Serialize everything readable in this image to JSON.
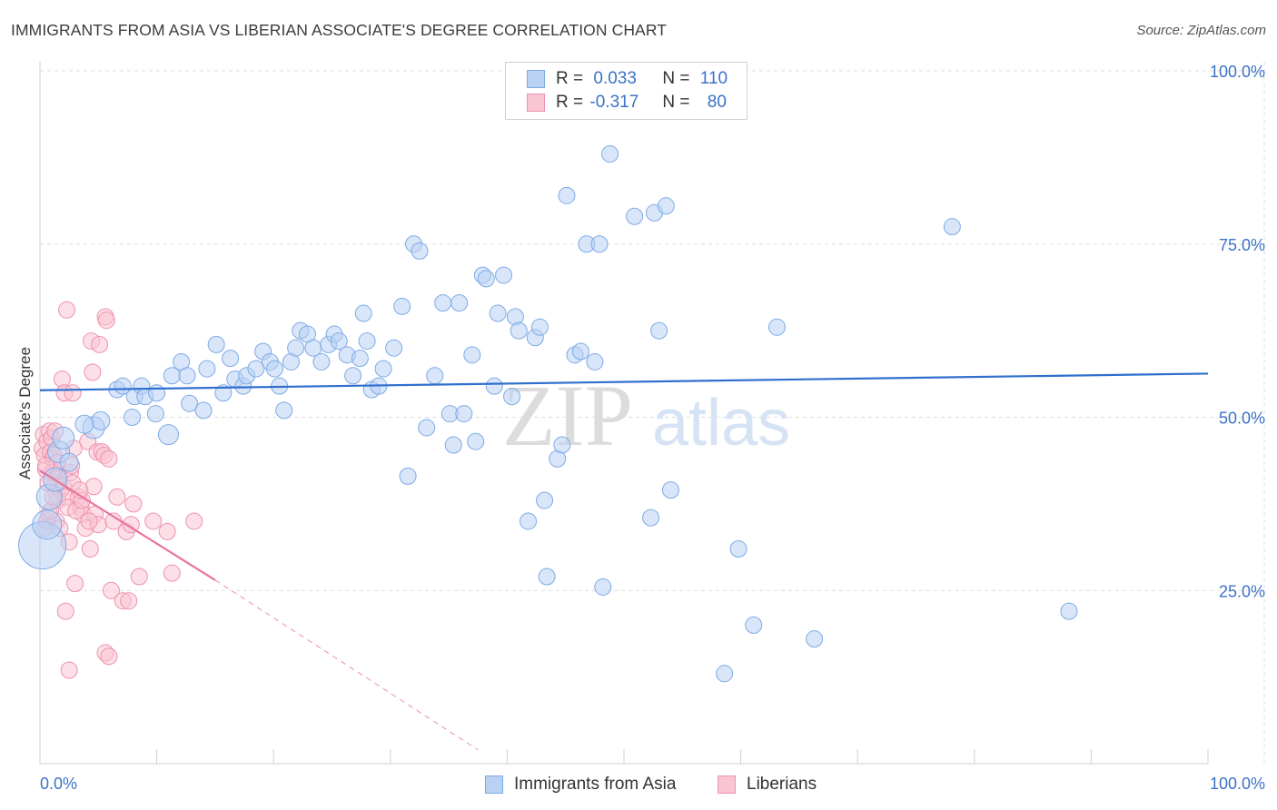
{
  "title": "IMMIGRANTS FROM ASIA VS LIBERIAN ASSOCIATE'S DEGREE CORRELATION CHART",
  "source": "Source: ZipAtlas.com",
  "watermark": {
    "zip": "ZIP",
    "atlas": "atlas"
  },
  "legend": {
    "r_label": "R =",
    "n_label": "N =",
    "rows": [
      {
        "r": "0.033",
        "n": "110"
      },
      {
        "r": "-0.317",
        "n": "80"
      }
    ]
  },
  "colors": {
    "blue_fill": "#b9d2f4",
    "blue_stroke": "#7eaae6",
    "blue_line": "#2f6fce",
    "pink_fill": "#f9c4d3",
    "pink_stroke": "#ee92ae",
    "pink_line": "#e8729b",
    "axis_text": "#3a72c8",
    "grid": "#dddddd"
  },
  "chart_data": {
    "type": "scatter",
    "title": "IMMIGRANTS FROM ASIA VS LIBERIAN ASSOCIATE'S DEGREE CORRELATION CHART",
    "xlabel": "",
    "ylabel": "Associate's Degree",
    "xlim": [
      0,
      100
    ],
    "ylim": [
      0,
      100
    ],
    "x_tick_labels": [
      "0.0%",
      "100.0%"
    ],
    "y_ticks": [
      25,
      50,
      75,
      100
    ],
    "y_tick_labels": [
      "25.0%",
      "50.0%",
      "75.0%",
      "100.0%"
    ],
    "grid": true,
    "legend_position": "top-center",
    "series": [
      {
        "name": "Immigrants from Asia",
        "color": "#b9d2f4",
        "trend": {
          "x": [
            0,
            100
          ],
          "y": [
            53.9,
            56.3
          ]
        },
        "points": [
          [
            0.2,
            31.5,
            26
          ],
          [
            0.6,
            34.5,
            16
          ],
          [
            0.8,
            38.5,
            14
          ],
          [
            1.3,
            41,
            13
          ],
          [
            1.6,
            45,
            12
          ],
          [
            2,
            47,
            12
          ],
          [
            2.5,
            43.5,
            10
          ],
          [
            4.6,
            48.5,
            12
          ],
          [
            5.2,
            49.5,
            10
          ],
          [
            3.8,
            49,
            10
          ],
          [
            6.6,
            54,
            9
          ],
          [
            7.1,
            54.5,
            9
          ],
          [
            8.1,
            53,
            9
          ],
          [
            8.7,
            54.5,
            9
          ],
          [
            7.9,
            50,
            9
          ],
          [
            9,
            53,
            9
          ],
          [
            10,
            53.5,
            9
          ],
          [
            9.9,
            50.5,
            9
          ],
          [
            11,
            47.5,
            11
          ],
          [
            11.3,
            56,
            9
          ],
          [
            12.1,
            58,
            9
          ],
          [
            12.6,
            56,
            9
          ],
          [
            12.8,
            52,
            9
          ],
          [
            14,
            51,
            9
          ],
          [
            14.3,
            57,
            9
          ],
          [
            15.1,
            60.5,
            9
          ],
          [
            15.7,
            53.5,
            9
          ],
          [
            16.3,
            58.5,
            9
          ],
          [
            16.7,
            55.5,
            9
          ],
          [
            17.4,
            54.5,
            9
          ],
          [
            17.7,
            56,
            9
          ],
          [
            18.5,
            57,
            9
          ],
          [
            19.1,
            59.5,
            9
          ],
          [
            19.7,
            58,
            9
          ],
          [
            20.1,
            57,
            9
          ],
          [
            20.5,
            54.5,
            9
          ],
          [
            20.9,
            51,
            9
          ],
          [
            21.5,
            58,
            9
          ],
          [
            21.9,
            60,
            9
          ],
          [
            22.3,
            62.5,
            9
          ],
          [
            22.9,
            62,
            9
          ],
          [
            23.4,
            60,
            9
          ],
          [
            24.1,
            58,
            9
          ],
          [
            24.7,
            60.5,
            9
          ],
          [
            25.2,
            62,
            9
          ],
          [
            25.6,
            61,
            9
          ],
          [
            26.3,
            59,
            9
          ],
          [
            26.8,
            56,
            9
          ],
          [
            27.4,
            58.5,
            9
          ],
          [
            27.7,
            65,
            9
          ],
          [
            28,
            61,
            9
          ],
          [
            28.4,
            54,
            9
          ],
          [
            29,
            54.5,
            9
          ],
          [
            29.4,
            57,
            9
          ],
          [
            30.3,
            60,
            9
          ],
          [
            31,
            66,
            9
          ],
          [
            31.5,
            41.5,
            9
          ],
          [
            32,
            75,
            9
          ],
          [
            32.5,
            74,
            9
          ],
          [
            33.1,
            48.5,
            9
          ],
          [
            33.8,
            56,
            9
          ],
          [
            34.5,
            66.5,
            9
          ],
          [
            35.1,
            50.5,
            9
          ],
          [
            35.4,
            46,
            9
          ],
          [
            35.9,
            66.5,
            9
          ],
          [
            36.3,
            50.5,
            9
          ],
          [
            37,
            59,
            9
          ],
          [
            37.3,
            46.5,
            9
          ],
          [
            37.9,
            70.5,
            9
          ],
          [
            38.2,
            70,
            9
          ],
          [
            38.9,
            54.5,
            9
          ],
          [
            39.2,
            65,
            9
          ],
          [
            39.7,
            70.5,
            9
          ],
          [
            40.4,
            53,
            9
          ],
          [
            40.7,
            64.5,
            9
          ],
          [
            41,
            62.5,
            9
          ],
          [
            41.8,
            35,
            9
          ],
          [
            42.4,
            61.5,
            9
          ],
          [
            42.8,
            63,
            9
          ],
          [
            43.2,
            38,
            9
          ],
          [
            43.4,
            27,
            9
          ],
          [
            44.3,
            44,
            9
          ],
          [
            44.7,
            46,
            9
          ],
          [
            45.1,
            82,
            9
          ],
          [
            45.8,
            59,
            9
          ],
          [
            46.3,
            59.5,
            9
          ],
          [
            46.8,
            75,
            9
          ],
          [
            47.5,
            58,
            9
          ],
          [
            47.9,
            75,
            9
          ],
          [
            48.2,
            25.5,
            9
          ],
          [
            48.8,
            88,
            9
          ],
          [
            50.9,
            79,
            9
          ],
          [
            52.3,
            35.5,
            9
          ],
          [
            52.6,
            79.5,
            9
          ],
          [
            53,
            62.5,
            9
          ],
          [
            53.6,
            80.5,
            9
          ],
          [
            54,
            39.5,
            9
          ],
          [
            58.6,
            13,
            9
          ],
          [
            59.8,
            31,
            9
          ],
          [
            61.1,
            20,
            9
          ],
          [
            63.1,
            63,
            9
          ],
          [
            66.3,
            18,
            9
          ],
          [
            78.1,
            77.5,
            9
          ],
          [
            88.1,
            22,
            9
          ]
        ]
      },
      {
        "name": "Liberians",
        "color": "#f9c4d3",
        "trend": {
          "x": [
            0,
            15
          ],
          "y": [
            42.3,
            26.5
          ]
        },
        "trend_dashed": {
          "x": [
            15,
            37.5
          ],
          "y": [
            26.5,
            2
          ]
        },
        "points": [
          [
            0.2,
            45.5,
            9
          ],
          [
            0.3,
            47.5,
            9
          ],
          [
            0.4,
            44.5,
            9
          ],
          [
            0.5,
            42.5,
            9
          ],
          [
            0.6,
            46.5,
            9
          ],
          [
            0.8,
            48,
            9
          ],
          [
            0.9,
            45,
            9
          ],
          [
            1,
            47,
            9
          ],
          [
            1.1,
            44,
            9
          ],
          [
            1.2,
            42,
            9
          ],
          [
            1.3,
            40.5,
            9
          ],
          [
            1.4,
            39,
            9
          ],
          [
            1.5,
            38,
            9
          ],
          [
            1.6,
            41.5,
            9
          ],
          [
            1.8,
            39.5,
            9
          ],
          [
            2,
            40,
            9
          ],
          [
            2.2,
            38.5,
            9
          ],
          [
            2.4,
            37,
            9
          ],
          [
            2.6,
            42,
            9
          ],
          [
            0.4,
            34,
            9
          ],
          [
            0.6,
            35,
            9
          ],
          [
            0.8,
            36,
            9
          ],
          [
            1.4,
            35,
            9
          ],
          [
            1.7,
            34,
            9
          ],
          [
            1.9,
            55.5,
            9
          ],
          [
            2.1,
            53.5,
            9
          ],
          [
            2.3,
            65.5,
            9
          ],
          [
            2.5,
            32,
            9
          ],
          [
            2.8,
            53.5,
            9
          ],
          [
            3,
            26,
            9
          ],
          [
            3.3,
            38.5,
            9
          ],
          [
            3.5,
            37,
            9
          ],
          [
            3.7,
            36,
            9
          ],
          [
            3.9,
            34,
            9
          ],
          [
            4.1,
            46.5,
            9
          ],
          [
            4.3,
            31,
            9
          ],
          [
            4.4,
            61,
            9
          ],
          [
            4.5,
            56.5,
            9
          ],
          [
            4.6,
            40,
            9
          ],
          [
            4.7,
            36,
            9
          ],
          [
            4.9,
            45,
            9
          ],
          [
            5,
            34.5,
            9
          ],
          [
            5.1,
            60.5,
            9
          ],
          [
            5.3,
            45,
            9
          ],
          [
            5.5,
            44.5,
            9
          ],
          [
            5.6,
            64.5,
            9
          ],
          [
            5.7,
            64,
            9
          ],
          [
            5.9,
            44,
            9
          ],
          [
            6.1,
            25,
            9
          ],
          [
            6.3,
            35,
            9
          ],
          [
            6.6,
            38.5,
            9
          ],
          [
            7.1,
            23.5,
            9
          ],
          [
            7.4,
            33.5,
            9
          ],
          [
            7.6,
            23.5,
            9
          ],
          [
            7.8,
            34.5,
            9
          ],
          [
            8,
            37.5,
            9
          ],
          [
            8.5,
            27,
            9
          ],
          [
            9.7,
            35,
            9
          ],
          [
            10.9,
            33.5,
            9
          ],
          [
            11.3,
            27.5,
            9
          ],
          [
            13.2,
            35,
            9
          ],
          [
            5.6,
            16,
            9
          ],
          [
            5.9,
            15.5,
            9
          ],
          [
            2.5,
            13.5,
            9
          ],
          [
            2.2,
            22,
            9
          ],
          [
            1,
            42,
            9
          ],
          [
            1.2,
            44.5,
            9
          ],
          [
            2.8,
            40.5,
            9
          ],
          [
            3.1,
            36.5,
            9
          ],
          [
            0.7,
            40.5,
            9
          ],
          [
            1.5,
            43.5,
            9
          ],
          [
            2.7,
            43,
            9
          ],
          [
            3.6,
            38,
            9
          ],
          [
            4.2,
            35,
            9
          ],
          [
            0.9,
            36.5,
            9
          ],
          [
            1.1,
            38.5,
            9
          ],
          [
            2.9,
            45.5,
            9
          ],
          [
            3.4,
            39.5,
            9
          ],
          [
            1.3,
            48,
            9
          ],
          [
            0.5,
            43,
            9
          ]
        ]
      }
    ]
  }
}
